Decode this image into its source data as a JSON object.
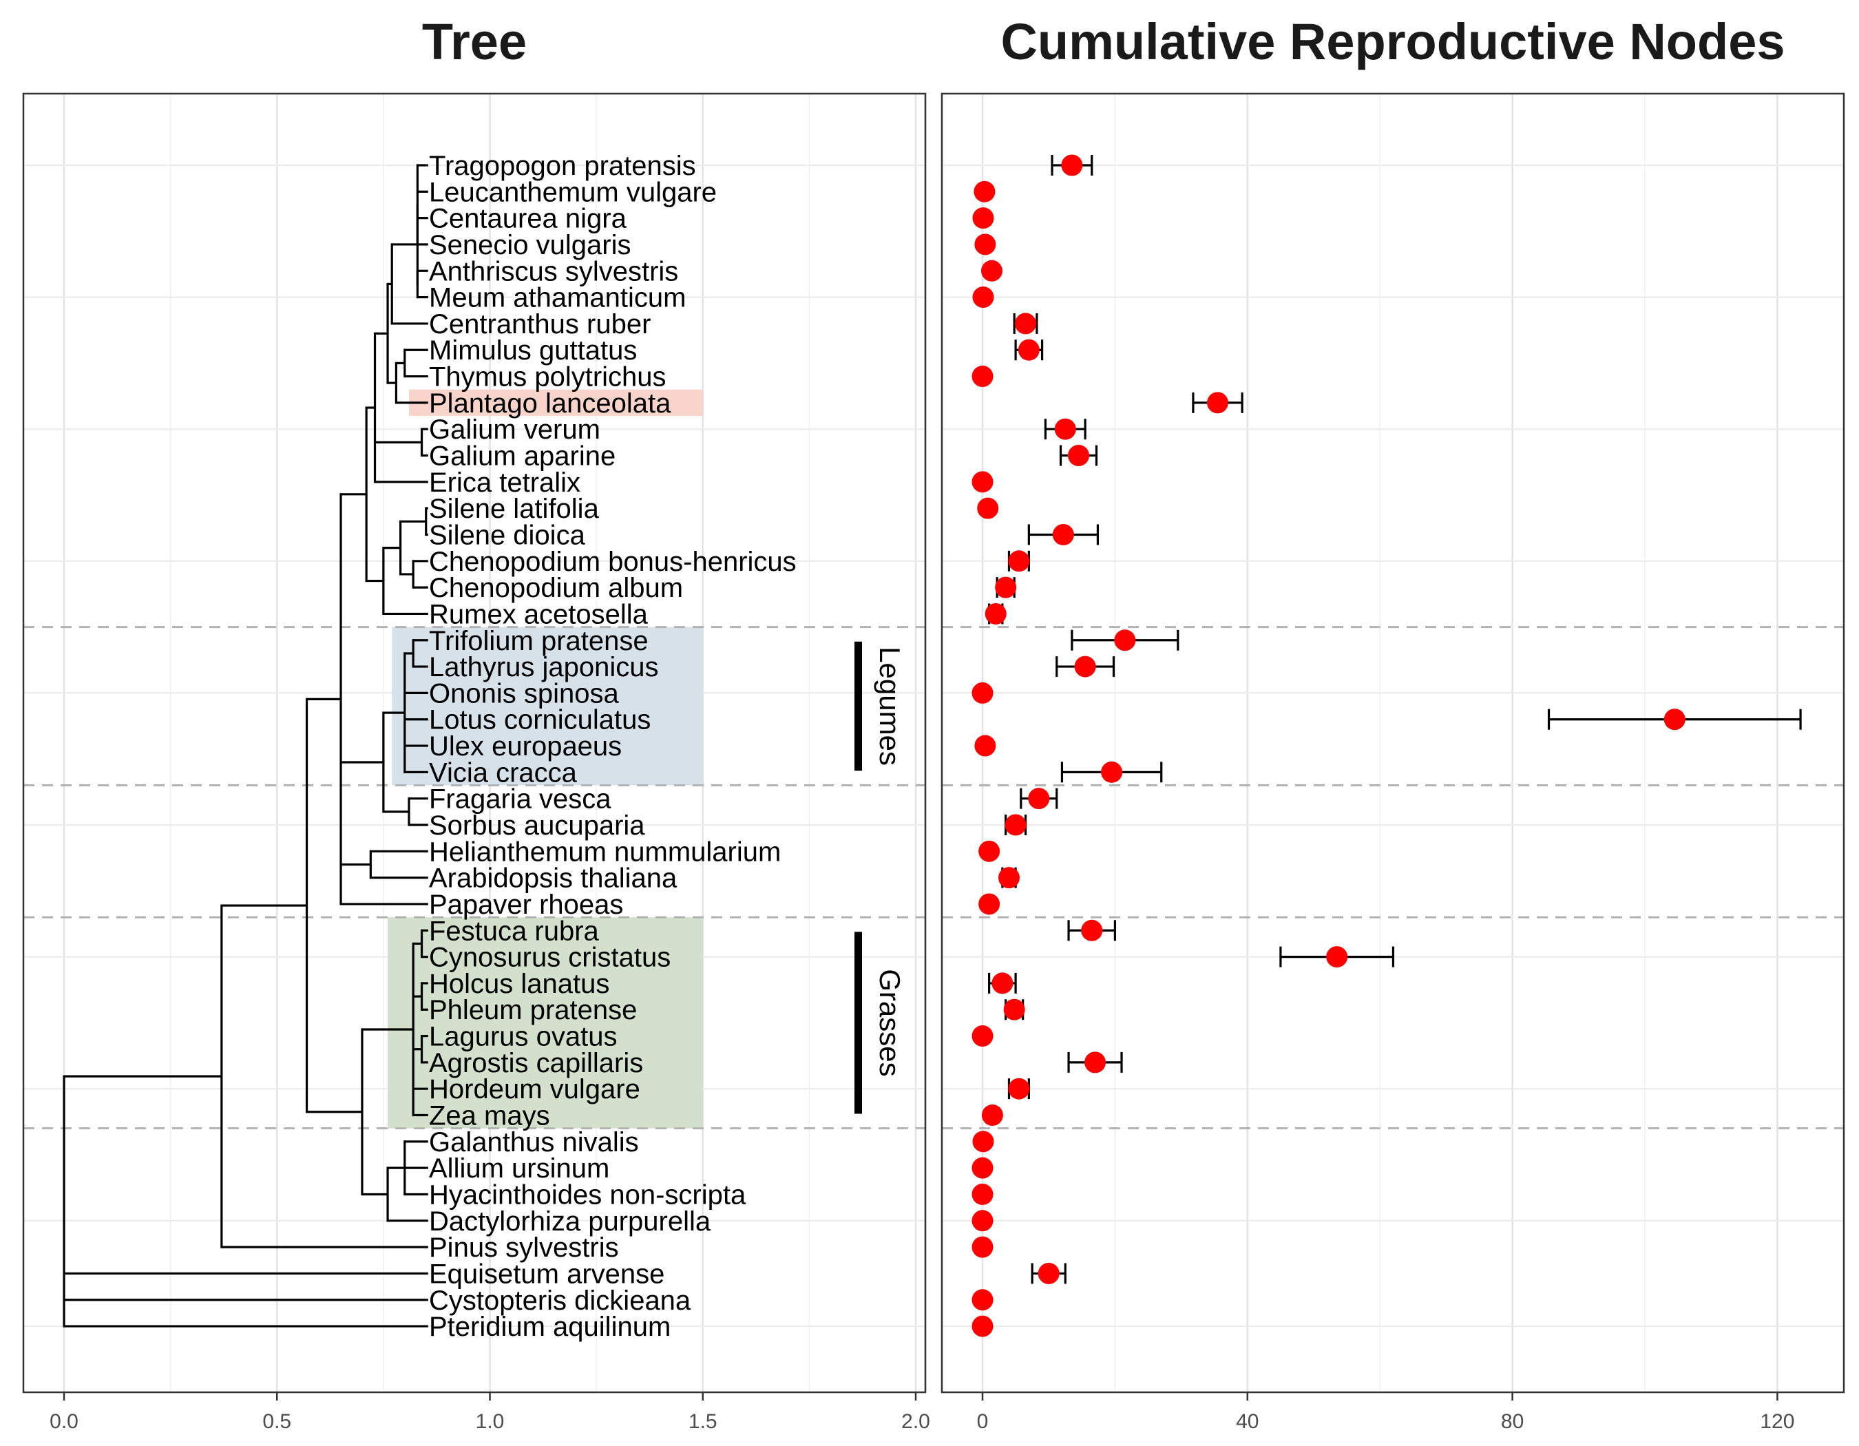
{
  "panels": {
    "left_title": "Tree",
    "right_title": "Cumulative Reproductive Nodes"
  },
  "chart_data": [
    {
      "type": "tree",
      "title": "Tree",
      "x_ticks": [
        "0.0",
        "0.5",
        "1.0",
        "1.5",
        "2.0"
      ],
      "xlim": [
        -0.09,
        2.03
      ],
      "taxa": [
        "Tragopogon pratensis",
        "Leucanthemum vulgare",
        "Centaurea nigra",
        "Senecio vulgaris",
        "Anthriscus sylvestris",
        "Meum athamanticum",
        "Centranthus ruber",
        "Mimulus guttatus",
        "Thymus polytrichus",
        "Plantago lanceolata",
        "Galium verum",
        "Galium aparine",
        "Erica tetralix",
        "Silene latifolia",
        "Silene dioica",
        "Chenopodium bonus-henricus",
        "Chenopodium album",
        "Rumex acetosella",
        "Trifolium pratense",
        "Lathyrus japonicus",
        "Ononis spinosa",
        "Lotus corniculatus",
        "Ulex europaeus",
        "Vicia cracca",
        "Fragaria vesca",
        "Sorbus aucuparia",
        "Helianthemum nummularium",
        "Arabidopsis thaliana",
        "Papaver rhoeas",
        "Festuca rubra",
        "Cynosurus cristatus",
        "Holcus lanatus",
        "Phleum pratense",
        "Lagurus ovatus",
        "Agrostis capillaris",
        "Hordeum vulgare",
        "Zea mays",
        "Galanthus nivalis",
        "Allium ursinum",
        "Hyacinthoides non-scripta",
        "Dactylorhiza purpurella",
        "Pinus sylvestris",
        "Equisetum arvense",
        "Cystopteris dickieana",
        "Pteridium aquilinum"
      ],
      "tree": {
        "x": 0.0,
        "c": [
          {
            "x": 0.37,
            "c": [
              {
                "x": 0.57,
                "c": [
                  {
                    "x": 0.65,
                    "c": [
                      {
                        "x": 0.71,
                        "c": [
                          {
                            "x": 0.73,
                            "c": [
                              {
                                "x": 0.76,
                                "c": [
                                  {
                                    "x": 0.77,
                                    "c": [
                                      {
                                        "x": 0.83,
                                        "c": [
                                          {
                                            "x": 0.83,
                                            "c": [
                                              {
                                                "l": 0
                                              },
                                              {
                                                "l": 1
                                              },
                                              {
                                                "l": 2
                                              },
                                              {
                                                "l": 3
                                              }
                                            ]
                                          },
                                          {
                                            "x": 0.83,
                                            "c": [
                                              {
                                                "l": 4
                                              },
                                              {
                                                "l": 5
                                              }
                                            ]
                                          }
                                        ]
                                      },
                                      {
                                        "l": 6
                                      }
                                    ]
                                  },
                                  {
                                    "x": 0.78,
                                    "c": [
                                      {
                                        "x": 0.8,
                                        "c": [
                                          {
                                            "l": 7
                                          },
                                          {
                                            "l": 8
                                          }
                                        ]
                                      },
                                      {
                                        "l": 9
                                      }
                                    ]
                                  }
                                ]
                              },
                              {
                                "x": 0.84,
                                "c": [
                                  {
                                    "l": 10
                                  },
                                  {
                                    "l": 11
                                  }
                                ]
                              },
                              {
                                "l": 12
                              }
                            ]
                          },
                          {
                            "x": 0.75,
                            "c": [
                              {
                                "x": 0.79,
                                "c": [
                                  {
                                    "x": 0.85,
                                    "c": [
                                      {
                                        "l": 13
                                      },
                                      {
                                        "l": 14
                                      }
                                    ]
                                  },
                                  {
                                    "x": 0.82,
                                    "c": [
                                      {
                                        "l": 15
                                      },
                                      {
                                        "l": 16
                                      }
                                    ]
                                  }
                                ]
                              },
                              {
                                "l": 17
                              }
                            ]
                          }
                        ]
                      },
                      {
                        "x": 0.75,
                        "c": [
                          {
                            "x": 0.8,
                            "c": [
                              {
                                "x": 0.82,
                                "c": [
                                  {
                                    "l": 18
                                  },
                                  {
                                    "l": 19
                                  }
                                ]
                              },
                              {
                                "l": 20
                              },
                              {
                                "l": 21
                              },
                              {
                                "l": 22
                              },
                              {
                                "l": 23
                              }
                            ]
                          },
                          {
                            "x": 0.81,
                            "c": [
                              {
                                "l": 24
                              },
                              {
                                "l": 25
                              }
                            ]
                          }
                        ]
                      },
                      {
                        "x": 0.72,
                        "c": [
                          {
                            "l": 26
                          },
                          {
                            "l": 27
                          }
                        ]
                      },
                      {
                        "l": 28
                      }
                    ]
                  },
                  {
                    "x": 0.7,
                    "c": [
                      {
                        "x": 0.82,
                        "c": [
                          {
                            "x": 0.84,
                            "c": [
                              {
                                "l": 29
                              },
                              {
                                "l": 30
                              }
                            ]
                          },
                          {
                            "x": 0.84,
                            "c": [
                              {
                                "l": 31
                              },
                              {
                                "l": 32
                              }
                            ]
                          },
                          {
                            "x": 0.84,
                            "c": [
                              {
                                "l": 33
                              },
                              {
                                "l": 34
                              }
                            ]
                          },
                          {
                            "l": 35
                          },
                          {
                            "l": 36
                          }
                        ]
                      },
                      {
                        "x": 0.76,
                        "c": [
                          {
                            "x": 0.8,
                            "c": [
                              {
                                "l": 37
                              },
                              {
                                "l": 38
                              },
                              {
                                "l": 39
                              }
                            ]
                          },
                          {
                            "l": 40
                          }
                        ]
                      }
                    ]
                  }
                ]
              },
              {
                "l": 41
              }
            ]
          },
          {
            "l": 42
          },
          {
            "l": 43
          },
          {
            "l": 44
          }
        ]
      },
      "highlights": [
        {
          "label": "Plantago lanceolata",
          "from": 9,
          "to": 9,
          "color": "#f8d4ca",
          "x_range": [
            0.81,
            1.5
          ]
        },
        {
          "label": "",
          "from": 18,
          "to": 23,
          "color": "#d7e1ea",
          "x_range": [
            0.77,
            1.5
          ]
        },
        {
          "label": "",
          "from": 29,
          "to": 36,
          "color": "#d2e0cc",
          "x_range": [
            0.76,
            1.5
          ]
        }
      ],
      "group_bars": [
        {
          "label": "Legumes",
          "from": 18,
          "to": 23
        },
        {
          "label": "Grasses",
          "from": 29,
          "to": 36
        }
      ],
      "separators_after_row": [
        17,
        23,
        28,
        36
      ]
    },
    {
      "type": "scatter",
      "title": "Cumulative Reproductive Nodes",
      "x_ticks": [
        0,
        40,
        80,
        120
      ],
      "xlim": [
        -6,
        130
      ],
      "grid": true,
      "point_color": "#ff0000",
      "points": [
        {
          "label": "Tragopogon pratensis",
          "value": 13.5,
          "lo": 10.5,
          "hi": 16.5
        },
        {
          "label": "Leucanthemum vulgare",
          "value": 0.3
        },
        {
          "label": "Centaurea nigra",
          "value": 0.1
        },
        {
          "label": "Senecio vulgaris",
          "value": 0.4
        },
        {
          "label": "Anthriscus sylvestris",
          "value": 1.4
        },
        {
          "label": "Meum athamanticum",
          "value": 0.1
        },
        {
          "label": "Centranthus ruber",
          "value": 6.5,
          "lo": 4.8,
          "hi": 8.2
        },
        {
          "label": "Mimulus guttatus",
          "value": 7.0,
          "lo": 5.0,
          "hi": 9.0
        },
        {
          "label": "Thymus polytrichus",
          "value": 0.0
        },
        {
          "label": "Plantago lanceolata",
          "value": 35.5,
          "lo": 31.8,
          "hi": 39.2
        },
        {
          "label": "Galium verum",
          "value": 12.5,
          "lo": 9.5,
          "hi": 15.5
        },
        {
          "label": "Galium aparine",
          "value": 14.5,
          "lo": 11.8,
          "hi": 17.2
        },
        {
          "label": "Erica tetralix",
          "value": 0.0
        },
        {
          "label": "Silene latifolia",
          "value": 0.8
        },
        {
          "label": "Silene dioica",
          "value": 12.2,
          "lo": 7.0,
          "hi": 17.4
        },
        {
          "label": "Chenopodium bonus-henricus",
          "value": 5.5,
          "lo": 4.0,
          "hi": 7.0
        },
        {
          "label": "Chenopodium album",
          "value": 3.5,
          "lo": 2.2,
          "hi": 4.8
        },
        {
          "label": "Rumex acetosella",
          "value": 2.0,
          "lo": 1.0,
          "hi": 3.0
        },
        {
          "label": "Trifolium pratense",
          "value": 21.5,
          "lo": 13.5,
          "hi": 29.5
        },
        {
          "label": "Lathyrus japonicus",
          "value": 15.5,
          "lo": 11.2,
          "hi": 19.8
        },
        {
          "label": "Ononis spinosa",
          "value": 0.0
        },
        {
          "label": "Lotus corniculatus",
          "value": 104.5,
          "lo": 85.5,
          "hi": 123.5
        },
        {
          "label": "Ulex europaeus",
          "value": 0.4
        },
        {
          "label": "Vicia cracca",
          "value": 19.5,
          "lo": 12.0,
          "hi": 27.0
        },
        {
          "label": "Fragaria vesca",
          "value": 8.5,
          "lo": 5.8,
          "hi": 11.2
        },
        {
          "label": "Sorbus aucuparia",
          "value": 5.0,
          "lo": 3.5,
          "hi": 6.5
        },
        {
          "label": "Helianthemum nummularium",
          "value": 1.0
        },
        {
          "label": "Arabidopsis thaliana",
          "value": 4.0,
          "lo": 3.0,
          "hi": 5.0
        },
        {
          "label": "Papaver rhoeas",
          "value": 1.0
        },
        {
          "label": "Festuca rubra",
          "value": 16.5,
          "lo": 13.0,
          "hi": 20.0
        },
        {
          "label": "Cynosurus cristatus",
          "value": 53.5,
          "lo": 45.0,
          "hi": 62.0
        },
        {
          "label": "Holcus lanatus",
          "value": 3.0,
          "lo": 1.0,
          "hi": 5.0
        },
        {
          "label": "Phleum pratense",
          "value": 4.8,
          "lo": 3.5,
          "hi": 6.1
        },
        {
          "label": "Lagurus ovatus",
          "value": 0.0
        },
        {
          "label": "Agrostis capillaris",
          "value": 17.0,
          "lo": 13.0,
          "hi": 21.0
        },
        {
          "label": "Hordeum vulgare",
          "value": 5.5,
          "lo": 4.0,
          "hi": 7.0
        },
        {
          "label": "Zea mays",
          "value": 1.5
        },
        {
          "label": "Galanthus nivalis",
          "value": 0.1
        },
        {
          "label": "Allium ursinum",
          "value": 0.0
        },
        {
          "label": "Hyacinthoides non-scripta",
          "value": 0.0
        },
        {
          "label": "Dactylorhiza purpurella",
          "value": 0.0
        },
        {
          "label": "Pinus sylvestris",
          "value": 0.0
        },
        {
          "label": "Equisetum arvense",
          "value": 10.0,
          "lo": 7.5,
          "hi": 12.5
        },
        {
          "label": "Cystopteris dickieana",
          "value": 0.0
        },
        {
          "label": "Pteridium aquilinum",
          "value": 0.0
        }
      ]
    }
  ]
}
